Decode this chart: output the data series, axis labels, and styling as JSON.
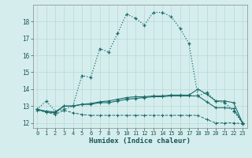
{
  "xlabel": "Humidex (Indice chaleur)",
  "bg_color": "#d5eeed",
  "grid_color": "#b8d8d5",
  "line_color": "#1a6b6b",
  "ylim": [
    11.7,
    19.0
  ],
  "xlim": [
    -0.5,
    23.5
  ],
  "yticks": [
    12,
    13,
    14,
    15,
    16,
    17,
    18
  ],
  "xticks": [
    0,
    1,
    2,
    3,
    4,
    5,
    6,
    7,
    8,
    9,
    10,
    11,
    12,
    13,
    14,
    15,
    16,
    17,
    18,
    19,
    20,
    21,
    22,
    23
  ],
  "line1_x": [
    0,
    1,
    2,
    3,
    4,
    5,
    6,
    7,
    8,
    9,
    10,
    11,
    12,
    13,
    14,
    15,
    16,
    17,
    18,
    19,
    20,
    21,
    22,
    23
  ],
  "line1_y": [
    12.8,
    13.3,
    12.7,
    12.8,
    13.0,
    14.8,
    14.7,
    16.4,
    16.2,
    17.3,
    18.45,
    18.2,
    17.8,
    18.55,
    18.55,
    18.3,
    17.6,
    16.7,
    13.6,
    13.8,
    13.3,
    13.2,
    12.7,
    12.0
  ],
  "line2_x": [
    0,
    1,
    2,
    3,
    4,
    5,
    6,
    7,
    8,
    9,
    10,
    11,
    12,
    13,
    14,
    15,
    16,
    17,
    18,
    19,
    20,
    21,
    22,
    23
  ],
  "line2_y": [
    12.8,
    12.7,
    12.65,
    13.0,
    13.0,
    13.1,
    13.15,
    13.25,
    13.3,
    13.4,
    13.5,
    13.55,
    13.55,
    13.6,
    13.6,
    13.65,
    13.65,
    13.65,
    14.0,
    13.7,
    13.3,
    13.3,
    13.2,
    12.0
  ],
  "line3_x": [
    0,
    1,
    2,
    3,
    4,
    5,
    6,
    7,
    8,
    9,
    10,
    11,
    12,
    13,
    14,
    15,
    16,
    17,
    18,
    19,
    20,
    21,
    22,
    23
  ],
  "line3_y": [
    12.8,
    12.65,
    12.6,
    13.0,
    13.0,
    13.1,
    13.1,
    13.2,
    13.2,
    13.3,
    13.4,
    13.45,
    13.5,
    13.55,
    13.55,
    13.6,
    13.6,
    13.6,
    13.6,
    13.25,
    12.9,
    12.9,
    12.85,
    12.0
  ],
  "line4_x": [
    0,
    1,
    2,
    3,
    4,
    5,
    6,
    7,
    8,
    9,
    10,
    11,
    12,
    13,
    14,
    15,
    16,
    17,
    18,
    19,
    20,
    21,
    22,
    23
  ],
  "line4_y": [
    12.75,
    12.65,
    12.5,
    12.75,
    12.6,
    12.5,
    12.45,
    12.45,
    12.45,
    12.45,
    12.45,
    12.45,
    12.45,
    12.45,
    12.45,
    12.45,
    12.45,
    12.45,
    12.45,
    12.2,
    12.0,
    12.0,
    12.0,
    11.95
  ]
}
